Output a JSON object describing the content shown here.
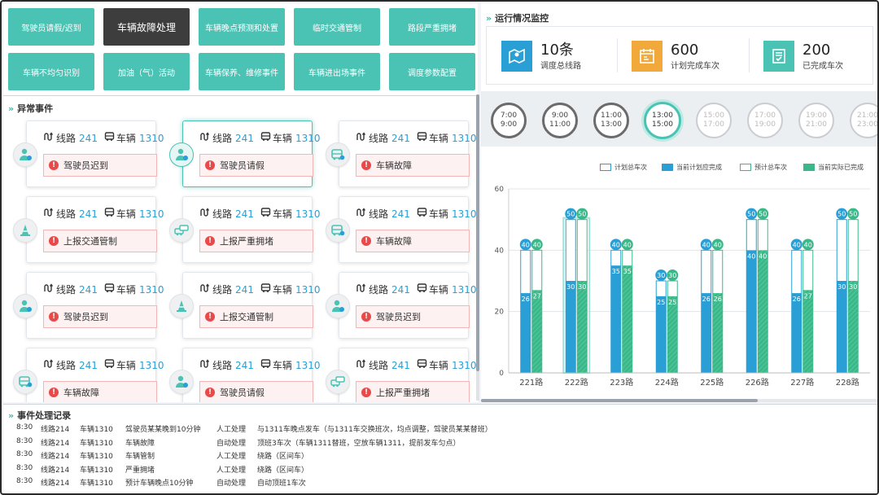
{
  "top_buttons": [
    {
      "label": "驾驶员请假/迟到"
    },
    {
      "label": "车辆故障处理",
      "active": true
    },
    {
      "label": "车辆晚点预测和处置"
    },
    {
      "label": "临时交通管制"
    },
    {
      "label": "路段严重拥堵"
    },
    {
      "label": "车辆不均匀识别"
    },
    {
      "label": "加油（气）活动"
    },
    {
      "label": "车辆保养、维修事件"
    },
    {
      "label": "车辆进出场事件"
    },
    {
      "label": "调度参数配置"
    }
  ],
  "abnormal": {
    "title": "异常事件",
    "route_label": "线路",
    "route_num": "241",
    "vehicle_label": "车辆",
    "vehicle_num": "1310",
    "cards": [
      {
        "icon": "driver-icon",
        "event": "驾驶员迟到"
      },
      {
        "icon": "driver-icon",
        "event": "驾驶员请假",
        "selected": true
      },
      {
        "icon": "bus-fault-icon",
        "event": "车辆故障"
      },
      {
        "icon": "cone-icon",
        "event": "上报交通管制"
      },
      {
        "icon": "congestion-icon",
        "event": "上报严重拥堵"
      },
      {
        "icon": "bus-fault-icon",
        "event": "车辆故障"
      },
      {
        "icon": "driver-icon",
        "event": "驾驶员迟到"
      },
      {
        "icon": "cone-icon",
        "event": "上报交通管制"
      },
      {
        "icon": "driver-icon",
        "event": "驾驶员迟到"
      },
      {
        "icon": "bus-fault-icon",
        "event": "车辆故障"
      },
      {
        "icon": "driver-icon",
        "event": "驾驶员请假"
      },
      {
        "icon": "congestion-icon",
        "event": "上报严重拥堵"
      }
    ]
  },
  "monitor": {
    "title": "运行情况监控",
    "kpis": [
      {
        "value": "10条",
        "label": "调度总线路",
        "color": "#2a9fd6",
        "icon": "map-icon"
      },
      {
        "value": "600",
        "label": "计划完成车次",
        "color": "#f2a93b",
        "icon": "calendar-icon"
      },
      {
        "value": "200",
        "label": "已完成车次",
        "color": "#4ac3b5",
        "icon": "checklist-icon"
      }
    ],
    "timeline": [
      {
        "start": "7:00",
        "end": "9:00",
        "state": "past"
      },
      {
        "start": "9:00",
        "end": "11:00",
        "state": "past"
      },
      {
        "start": "11:00",
        "end": "13:00",
        "state": "past"
      },
      {
        "start": "13:00",
        "end": "15:00",
        "state": "cur"
      },
      {
        "start": "15:00",
        "end": "17:00",
        "state": "fut"
      },
      {
        "start": "17:00",
        "end": "19:00",
        "state": "fut"
      },
      {
        "start": "19:00",
        "end": "21:00",
        "state": "fut"
      },
      {
        "start": "21:00",
        "end": "23:00",
        "state": "fut"
      }
    ]
  },
  "chart_data": {
    "type": "bar",
    "categories": [
      "221路",
      "222路",
      "223路",
      "224路",
      "225路",
      "226路",
      "227路",
      "228路"
    ],
    "ylim": [
      0,
      60
    ],
    "yticks": [
      0,
      20,
      40,
      60
    ],
    "legend": [
      "计划总车次",
      "当前计划应完成",
      "预计总车次",
      "当前实际已完成"
    ],
    "colors": {
      "outline": "#2a9fd6",
      "blue": "#2a9fd6",
      "green": "#3bb88a"
    },
    "series": [
      {
        "name": "计划总车次",
        "values": [
          40,
          50,
          40,
          30,
          40,
          50,
          40,
          50
        ]
      },
      {
        "name": "当前计划应完成",
        "values": [
          26,
          30,
          35,
          25,
          26,
          40,
          26,
          30
        ]
      },
      {
        "name": "预计总车次",
        "values": [
          40,
          50,
          40,
          30,
          40,
          50,
          40,
          50
        ]
      },
      {
        "name": "当前实际已完成",
        "values": [
          27,
          30,
          35,
          25,
          26,
          40,
          27,
          30
        ]
      }
    ],
    "highlight": "222路"
  },
  "log": {
    "title": "事件处理记录",
    "rows": [
      [
        "8:30",
        "线路214",
        "车辆1310",
        "驾驶员某某晚到10分钟",
        "人工处理",
        "与1311车晚点发车（与1311车交换班次，均点调整，驾驶员某某替班）"
      ],
      [
        "8:30",
        "线路214",
        "车辆1310",
        "车辆故障",
        "自动处理",
        "顶班3车次（车辆1311替班，空放车辆1311，提前发车匀点）"
      ],
      [
        "8:30",
        "线路214",
        "车辆1310",
        "车辆管制",
        "人工处理",
        "绕路（区间车）"
      ],
      [
        "8:30",
        "线路214",
        "车辆1310",
        "严重拥堵",
        "人工处理",
        "绕路（区间车）"
      ],
      [
        "8:30",
        "线路214",
        "车辆1310",
        "预计车辆晚点10分钟",
        "自动处理",
        "自动顶班1车次"
      ]
    ]
  }
}
